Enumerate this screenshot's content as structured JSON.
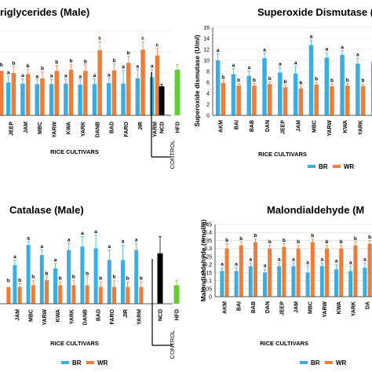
{
  "colors": {
    "br": "#3aaee2",
    "wr": "#ee7d3a",
    "ncd": "#000000",
    "hfd": "#66cc33",
    "grid": "#d9d9d9",
    "axis": "#555555"
  },
  "chart_data": [
    {
      "id": "tg",
      "type": "bar",
      "title": "riglycerides (Male)",
      "ylabel": "",
      "xlabel": "RICE CULTIVARS",
      "control_label": "CONTROL",
      "ylim": [
        0,
        20
      ],
      "categories": [
        "JEEP",
        "JAM",
        "MBC",
        "YARW",
        "KWA",
        "YARK",
        "DANB",
        "BAD",
        "FARO",
        "JIR",
        "YARM"
      ],
      "series": [
        {
          "name": "BR",
          "values": [
            6.2,
            6.0,
            5.9,
            5.9,
            6.0,
            5.8,
            5.9,
            6.1,
            6.0,
            7.0,
            7.2
          ],
          "errors": [
            1.2,
            0.9,
            0.8,
            0.9,
            0.8,
            0.9,
            1.0,
            0.9,
            2.5,
            1.6,
            1.5
          ],
          "letters": [
            "a",
            "a",
            "a",
            "a",
            "a",
            "a",
            "a",
            "a",
            "a",
            "a",
            "a"
          ]
        },
        {
          "name": "WR",
          "values": [
            8.0,
            7.8,
            7.0,
            8.4,
            8.6,
            8.4,
            12.3,
            8.5,
            9.9,
            12.4,
            11.3
          ],
          "errors": [
            1.2,
            0.9,
            1.2,
            1.0,
            1.0,
            1.1,
            1.6,
            1.2,
            1.2,
            1.5,
            1.4
          ],
          "letters": [
            "b",
            "b",
            "b",
            "b",
            "b",
            "b",
            "c",
            "b",
            "b",
            "c",
            "c"
          ]
        }
      ],
      "first_point": {
        "br": 6.0,
        "wr": 8.4,
        "br_letter": "a",
        "wr_letter": "b"
      },
      "controls": [
        {
          "name": "NCD",
          "value": 5.5,
          "error": 0.4
        },
        {
          "name": "HFD",
          "value": 8.6,
          "error": 1.0
        }
      ],
      "legend": []
    },
    {
      "id": "sod",
      "type": "bar",
      "title": "Superoxide Dismutase (",
      "ylabel": "Superoxide dismutase (U/ml)",
      "xlabel": "RICE CULTIVARS",
      "ylim": [
        0,
        16
      ],
      "yticks": [
        0,
        2,
        4,
        6,
        8,
        10,
        12,
        14,
        16
      ],
      "categories": [
        "AKM",
        "BAI",
        "BAB",
        "DAN",
        "JEEP",
        "JAM",
        "MBC",
        "YARW",
        "KWA",
        "YARK",
        "DA"
      ],
      "series": [
        {
          "name": "BR",
          "values": [
            10.0,
            7.5,
            7.2,
            10.4,
            7.8,
            7.6,
            12.8,
            10.5,
            11.0,
            9.4,
            9.8
          ],
          "errors": [
            1.2,
            1.0,
            0.9,
            0.9,
            0.9,
            1.3,
            0.9,
            0.9,
            0.8,
            1.0,
            1.0
          ],
          "letters": [
            "a",
            "a",
            "a",
            "a",
            "a",
            "a",
            "a",
            "a",
            "a",
            "a",
            "a"
          ]
        },
        {
          "name": "WR",
          "values": [
            5.9,
            5.4,
            5.4,
            5.7,
            5.1,
            4.9,
            5.6,
            5.3,
            5.4,
            5.3,
            5.3
          ],
          "errors": [
            0.4,
            0.4,
            0.4,
            0.4,
            0.4,
            0.4,
            0.4,
            0.4,
            0.4,
            0.4,
            0.4
          ],
          "letters": [
            "b",
            "b",
            "b",
            "b",
            "b",
            "b",
            "b",
            "b",
            "b",
            "b",
            "b"
          ]
        }
      ],
      "legend": [
        {
          "name": "BR",
          "color": "#3aaee2"
        },
        {
          "name": "WR",
          "color": "#ee7d3a"
        }
      ]
    },
    {
      "id": "cat",
      "type": "bar",
      "title": "Catalase (Male)",
      "ylabel": "",
      "xlabel": "RICE CULTIVARS",
      "control_label": "CONTROL",
      "ylim": [
        0,
        50
      ],
      "categories": [
        "JAM",
        "MBC",
        "YARW",
        "KWA",
        "YARK",
        "DANB",
        "BAD",
        "FARO",
        "JIR",
        "YARM"
      ],
      "series": [
        {
          "name": "BR",
          "values": [
            23,
            35,
            29,
            21,
            32,
            34,
            33,
            26,
            26,
            32
          ],
          "errors": [
            3,
            2,
            3,
            3,
            4,
            6,
            8,
            6,
            9,
            4
          ],
          "letters": [
            "a",
            "a",
            "a",
            "a",
            "a",
            "a",
            "a",
            "a",
            "a",
            "a"
          ]
        },
        {
          "name": "WR",
          "values": [
            10,
            11,
            14,
            11,
            11,
            11,
            10,
            10,
            10,
            10
          ],
          "errors": [
            2,
            3,
            2,
            2,
            3,
            5,
            3,
            4,
            3,
            3
          ],
          "letters": [
            "b",
            "b",
            "b",
            "b",
            "b",
            "b",
            "b",
            "b",
            "b",
            "b"
          ]
        }
      ],
      "first_point": {
        "wr": 10,
        "wr_letter": "b"
      },
      "controls": [
        {
          "name": "NCD",
          "value": 30,
          "error": 10
        },
        {
          "name": "HFD",
          "value": 11,
          "error": 3
        }
      ],
      "legend": [
        {
          "name": "BR",
          "color": "#3aaee2"
        },
        {
          "name": "WR",
          "color": "#ee7d3a"
        }
      ]
    },
    {
      "id": "mda",
      "type": "bar",
      "title": "Malondialdehyde (M",
      "ylabel": "Malondialdehyde (nmol/g)",
      "xlabel": "RICE CULTIVARS",
      "ylim": [
        0,
        0.45
      ],
      "yticks": [
        0,
        0.05,
        0.1,
        0.15,
        0.2,
        0.25,
        0.3,
        0.35,
        0.4,
        0.45
      ],
      "categories": [
        "AKM",
        "BAI",
        "BAB",
        "DAN",
        "JEEP",
        "JAM",
        "MBC",
        "YARW",
        "KWA",
        "YARK",
        "DA"
      ],
      "series": [
        {
          "name": "BR",
          "values": [
            0.16,
            0.16,
            0.19,
            0.15,
            0.19,
            0.19,
            0.15,
            0.19,
            0.17,
            0.16,
            0.18
          ],
          "errors": [
            0.02,
            0.02,
            0.02,
            0.02,
            0.02,
            0.02,
            0.04,
            0.02,
            0.03,
            0.03,
            0.03
          ],
          "letters": [
            "a",
            "a",
            "a",
            "a",
            "a",
            "a",
            "a",
            "a",
            "a",
            "a",
            "a"
          ]
        },
        {
          "name": "WR",
          "values": [
            0.3,
            0.32,
            0.34,
            0.3,
            0.31,
            0.3,
            0.34,
            0.3,
            0.3,
            0.32,
            0.33
          ],
          "errors": [
            0.03,
            0.02,
            0.02,
            0.02,
            0.02,
            0.02,
            0.02,
            0.02,
            0.02,
            0.02,
            0.02
          ],
          "letters": [
            "b",
            "b",
            "b",
            "b",
            "b",
            "b",
            "b",
            "b",
            "b",
            "b",
            "b"
          ]
        }
      ],
      "legend": [
        {
          "name": "BR",
          "color": "#3aaee2"
        },
        {
          "name": "WR",
          "color": "#ee7d3a"
        }
      ]
    }
  ]
}
